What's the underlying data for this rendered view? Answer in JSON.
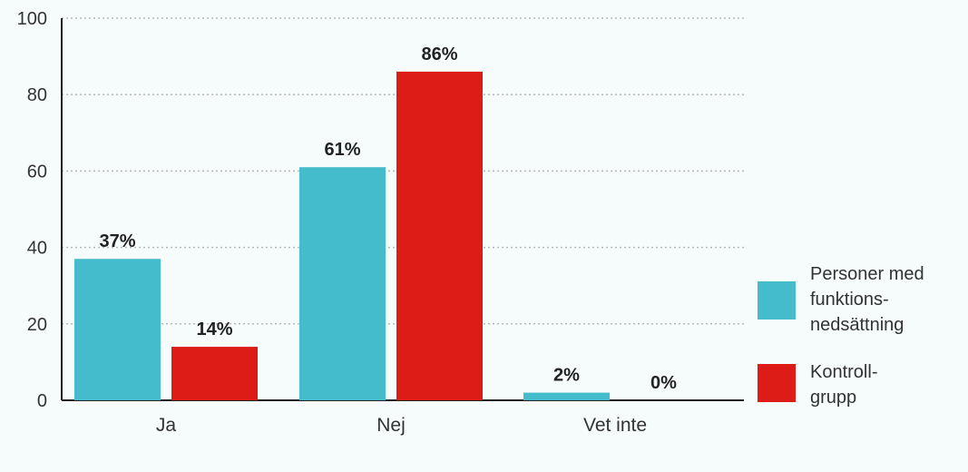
{
  "colors": {
    "series1": "#45bccb",
    "series2": "#dd1c17"
  },
  "chart_data": {
    "type": "bar",
    "categories": [
      "Ja",
      "Nej",
      "Vet inte"
    ],
    "series": [
      {
        "name": "Personer med funktions-nedsättning",
        "values": [
          37,
          61,
          2
        ],
        "labels": [
          "37%",
          "61%",
          "2%"
        ]
      },
      {
        "name": "Kontroll-grupp",
        "values": [
          14,
          86,
          0
        ],
        "labels": [
          "14%",
          "86%",
          "0%"
        ]
      }
    ],
    "ylim": [
      0,
      100
    ],
    "yticks": [
      0,
      20,
      40,
      60,
      80,
      100
    ],
    "ytick_labels": [
      "0",
      "20",
      "40",
      "60",
      "80",
      "100"
    ],
    "grid": true,
    "legend_position": "right",
    "legend": [
      {
        "lines": [
          "Personer med",
          "funktions-",
          "nedsättning"
        ]
      },
      {
        "lines": [
          "Kontroll-",
          "grupp"
        ]
      }
    ]
  }
}
